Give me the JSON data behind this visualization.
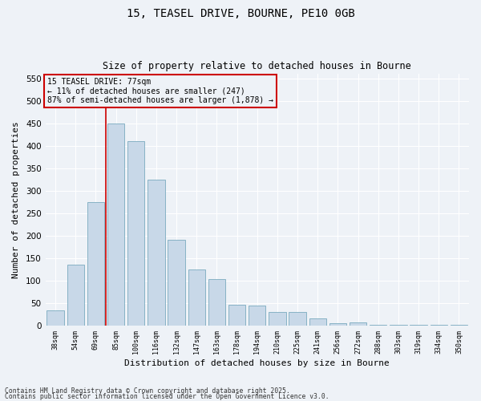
{
  "title1": "15, TEASEL DRIVE, BOURNE, PE10 0GB",
  "title2": "Size of property relative to detached houses in Bourne",
  "xlabel": "Distribution of detached houses by size in Bourne",
  "ylabel": "Number of detached properties",
  "categories": [
    "38sqm",
    "54sqm",
    "69sqm",
    "85sqm",
    "100sqm",
    "116sqm",
    "132sqm",
    "147sqm",
    "163sqm",
    "178sqm",
    "194sqm",
    "210sqm",
    "225sqm",
    "241sqm",
    "256sqm",
    "272sqm",
    "288sqm",
    "303sqm",
    "319sqm",
    "334sqm",
    "350sqm"
  ],
  "values": [
    33,
    135,
    275,
    450,
    410,
    325,
    190,
    125,
    103,
    45,
    44,
    30,
    30,
    16,
    5,
    7,
    2,
    1,
    1,
    1,
    1
  ],
  "bar_color": "#c8d8e8",
  "bar_edge_color": "#7aaabf",
  "vline_color": "#cc0000",
  "annotation_title": "15 TEASEL DRIVE: 77sqm",
  "annotation_line1": "← 11% of detached houses are smaller (247)",
  "annotation_line2": "87% of semi-detached houses are larger (1,878) →",
  "annotation_box_color": "#cc0000",
  "ylim": [
    0,
    560
  ],
  "yticks": [
    0,
    50,
    100,
    150,
    200,
    250,
    300,
    350,
    400,
    450,
    500,
    550
  ],
  "bg_color": "#eef2f7",
  "grid_color": "#ffffff",
  "footer1": "Contains HM Land Registry data © Crown copyright and database right 2025.",
  "footer2": "Contains public sector information licensed under the Open Government Licence v3.0."
}
